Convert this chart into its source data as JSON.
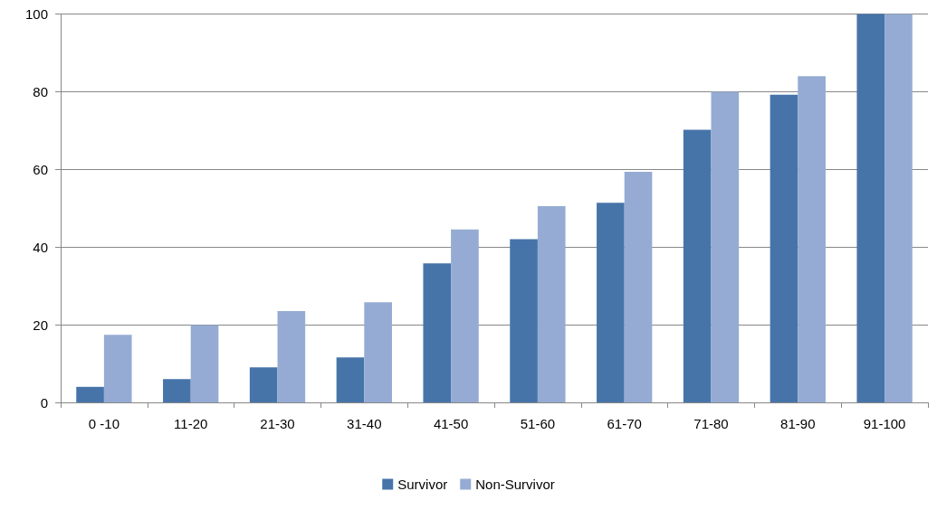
{
  "chart_data": {
    "type": "bar",
    "categories": [
      "0 -10",
      "11-20",
      "21-30",
      "31-40",
      "41-50",
      "51-60",
      "61-70",
      "71-80",
      "81-90",
      "91-100"
    ],
    "series": [
      {
        "name": "Survivor",
        "color": "#4674a9",
        "values": [
          4,
          6,
          9,
          11.6,
          35.8,
          42,
          51.4,
          70.2,
          79.2,
          100
        ]
      },
      {
        "name": "Non-Survivor",
        "color": "#95abd3",
        "values": [
          17.4,
          19.9,
          23.5,
          25.8,
          44.5,
          50.5,
          59.4,
          80,
          84,
          100
        ]
      }
    ],
    "ylim": [
      0,
      100
    ],
    "yticks": [
      0,
      20,
      40,
      60,
      80,
      100
    ],
    "grid": "y",
    "legend": "bottom"
  }
}
